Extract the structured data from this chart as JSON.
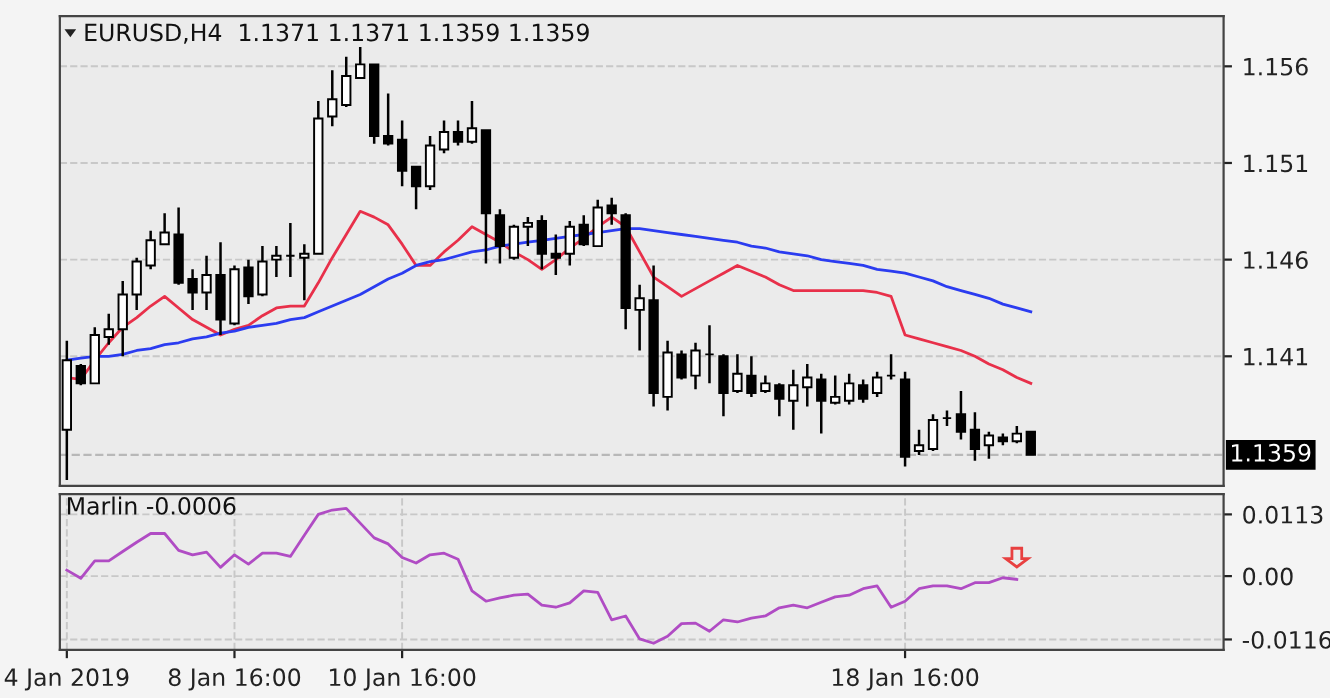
{
  "chart_data": [
    {
      "type": "candlestick",
      "title": "EURUSD,H4  1.1371 1.1371 1.1359 1.1359",
      "categories": [
        null,
        null,
        null,
        null,
        null,
        null,
        null,
        null,
        null,
        null,
        null,
        null,
        null,
        null,
        null,
        null,
        null,
        null,
        null,
        null,
        null,
        null,
        null,
        null,
        null,
        null,
        null,
        null,
        null,
        null,
        null,
        null,
        null,
        null,
        null,
        null,
        null,
        null,
        null,
        null,
        null,
        null,
        null,
        null,
        null,
        null,
        null,
        null,
        null,
        null,
        null,
        null,
        null,
        null,
        null,
        null,
        null,
        null,
        null,
        null,
        null,
        null,
        null,
        null,
        null,
        null,
        null,
        null,
        null,
        null
      ],
      "ohlc": [
        [
          1.1372,
          1.1418,
          1.1346,
          1.1408
        ],
        [
          1.1405,
          1.1406,
          1.1395,
          1.1396
        ],
        [
          1.1396,
          1.1425,
          1.1396,
          1.1421
        ],
        [
          1.142,
          1.1432,
          1.1416,
          1.1424
        ],
        [
          1.1424,
          1.1449,
          1.141,
          1.1442
        ],
        [
          1.1442,
          1.1461,
          1.1434,
          1.1459
        ],
        [
          1.1457,
          1.1475,
          1.1455,
          1.147
        ],
        [
          1.1468,
          1.1484,
          1.1468,
          1.1474
        ],
        [
          1.1473,
          1.1487,
          1.1447,
          1.1448
        ],
        [
          1.145,
          1.1455,
          1.1434,
          1.1443
        ],
        [
          1.1443,
          1.1462,
          1.1434,
          1.1452
        ],
        [
          1.1452,
          1.1469,
          1.1421,
          1.1429
        ],
        [
          1.1427,
          1.1457,
          1.1426,
          1.1455
        ],
        [
          1.1456,
          1.146,
          1.1437,
          1.1441
        ],
        [
          1.1442,
          1.1467,
          1.1441,
          1.1459
        ],
        [
          1.146,
          1.1467,
          1.1451,
          1.1462
        ],
        [
          1.1462,
          1.1479,
          1.1451,
          1.1462
        ],
        [
          1.1461,
          1.1468,
          1.1439,
          1.1463
        ],
        [
          1.1463,
          1.1542,
          1.1463,
          1.1533
        ],
        [
          1.1534,
          1.1558,
          1.1529,
          1.1543
        ],
        [
          1.154,
          1.1565,
          1.1539,
          1.1555
        ],
        [
          1.1554,
          1.157,
          1.1554,
          1.1561
        ],
        [
          1.1561,
          1.1561,
          1.152,
          1.1524
        ],
        [
          1.1524,
          1.1546,
          1.1519,
          1.152
        ],
        [
          1.1522,
          1.1532,
          1.1498,
          1.1506
        ],
        [
          1.1508,
          1.1508,
          1.1486,
          1.1498
        ],
        [
          1.1498,
          1.1524,
          1.1496,
          1.1519
        ],
        [
          1.1517,
          1.1532,
          1.1515,
          1.1526
        ],
        [
          1.1526,
          1.1532,
          1.1519,
          1.1521
        ],
        [
          1.1521,
          1.1542,
          1.152,
          1.1528
        ],
        [
          1.1527,
          1.1527,
          1.1458,
          1.1484
        ],
        [
          1.1483,
          1.1486,
          1.1458,
          1.1467
        ],
        [
          1.1461,
          1.1478,
          1.146,
          1.1477
        ],
        [
          1.1477,
          1.1482,
          1.1467,
          1.1479
        ],
        [
          1.148,
          1.1483,
          1.1455,
          1.1463
        ],
        [
          1.1463,
          1.1473,
          1.1452,
          1.1461
        ],
        [
          1.1463,
          1.148,
          1.1457,
          1.1477
        ],
        [
          1.1478,
          1.1483,
          1.1467,
          1.1468
        ],
        [
          1.1467,
          1.1491,
          1.1467,
          1.1487
        ],
        [
          1.1488,
          1.1492,
          1.1478,
          1.1484
        ],
        [
          1.1483,
          1.1484,
          1.1424,
          1.1435
        ],
        [
          1.1434,
          1.1447,
          1.1413,
          1.144
        ],
        [
          1.1439,
          1.1457,
          1.1384,
          1.1391
        ],
        [
          1.1389,
          1.1418,
          1.1382,
          1.1412
        ],
        [
          1.1411,
          1.1413,
          1.1398,
          1.1399
        ],
        [
          1.14,
          1.1417,
          1.1393,
          1.1413
        ],
        [
          1.1411,
          1.1426,
          1.1396,
          1.1411
        ],
        [
          1.141,
          1.1411,
          1.1379,
          1.1391
        ],
        [
          1.1392,
          1.1411,
          1.1391,
          1.1401
        ],
        [
          1.14,
          1.141,
          1.1389,
          1.1391
        ],
        [
          1.1392,
          1.14,
          1.1391,
          1.1396
        ],
        [
          1.1395,
          1.1396,
          1.1379,
          1.1388
        ],
        [
          1.1387,
          1.1403,
          1.1372,
          1.1395
        ],
        [
          1.1394,
          1.1406,
          1.1384,
          1.1399
        ],
        [
          1.1398,
          1.1401,
          1.137,
          1.1387
        ],
        [
          1.1386,
          1.14,
          1.1385,
          1.1389
        ],
        [
          1.1387,
          1.1401,
          1.1385,
          1.1396
        ],
        [
          1.1395,
          1.1398,
          1.1386,
          1.1388
        ],
        [
          1.1391,
          1.1402,
          1.1389,
          1.1399
        ],
        [
          1.14,
          1.1411,
          1.1398,
          1.14
        ],
        [
          1.1398,
          1.1402,
          1.1353,
          1.1358
        ],
        [
          1.1361,
          1.1372,
          1.1359,
          1.1364
        ],
        [
          1.1362,
          1.138,
          1.1361,
          1.1377
        ],
        [
          1.1378,
          1.1382,
          1.1374,
          1.1378
        ],
        [
          1.138,
          1.1392,
          1.1367,
          1.1371
        ],
        [
          1.1372,
          1.1381,
          1.1356,
          1.1362
        ],
        [
          1.1364,
          1.1371,
          1.1357,
          1.1369
        ],
        [
          1.1368,
          1.137,
          1.1364,
          1.1366
        ],
        [
          1.1366,
          1.1374,
          1.1365,
          1.137
        ],
        [
          1.1371,
          1.1371,
          1.1359,
          1.1359
        ]
      ],
      "series": [
        {
          "type": "line",
          "color": "#e8304a",
          "values": [
            1.1399,
            1.1398,
            1.1408,
            1.1417,
            1.1425,
            1.143,
            1.1436,
            1.1441,
            1.1435,
            1.1429,
            1.1425,
            1.1421,
            1.1424,
            1.1426,
            1.1431,
            1.1435,
            1.1436,
            1.1436,
            1.1448,
            1.1461,
            1.1473,
            1.1485,
            1.1482,
            1.1478,
            1.1468,
            1.1457,
            1.1457,
            1.1464,
            1.147,
            1.1477,
            1.1473,
            1.1469,
            1.1464,
            1.146,
            1.1455,
            1.146,
            1.1466,
            1.1471,
            1.1477,
            1.1482,
            1.1477,
            1.1464,
            1.1451,
            1.1446,
            1.1441,
            1.1445,
            1.1449,
            1.1453,
            1.1457,
            1.1454,
            1.1451,
            1.1447,
            1.1444,
            1.1444,
            1.1444,
            1.1444,
            1.1444,
            1.1444,
            1.1443,
            1.1441,
            1.1421,
            1.1419,
            1.1417,
            1.1415,
            1.1413,
            1.141,
            1.1406,
            1.1403,
            1.1399,
            1.1396
          ]
        },
        {
          "type": "line",
          "color": "#2b3cf0",
          "values": [
            1.1408,
            1.1409,
            1.141,
            1.141,
            1.1411,
            1.1413,
            1.1414,
            1.1416,
            1.1417,
            1.1419,
            1.142,
            1.1422,
            1.1423,
            1.1425,
            1.1426,
            1.1427,
            1.1429,
            1.143,
            1.1433,
            1.1436,
            1.1439,
            1.1442,
            1.1446,
            1.145,
            1.1453,
            1.1457,
            1.1459,
            1.146,
            1.1462,
            1.1464,
            1.1465,
            1.1467,
            1.1468,
            1.1469,
            1.147,
            1.1471,
            1.1472,
            1.1473,
            1.1474,
            1.1475,
            1.1476,
            1.1476,
            1.1475,
            1.1474,
            1.1473,
            1.1472,
            1.1471,
            1.147,
            1.1469,
            1.1467,
            1.1466,
            1.1464,
            1.1463,
            1.1462,
            1.146,
            1.1459,
            1.1458,
            1.1457,
            1.1455,
            1.1454,
            1.1453,
            1.1451,
            1.1449,
            1.1446,
            1.1444,
            1.1442,
            1.144,
            1.1437,
            1.1435,
            1.1433
          ]
        }
      ],
      "ylim": [
        1.1343,
        1.1586
      ],
      "yticks": [
        1.141,
        1.146,
        1.151,
        1.156
      ],
      "ref_lines": [
        {
          "axis": "y",
          "value": 1.1359,
          "label": "1.1359",
          "color": "#b8b8b8",
          "line_style": "dashed"
        }
      ],
      "grid": "y",
      "tick_labels": "y"
    },
    {
      "type": "line",
      "title": "Marlin -0.0006",
      "categories": [
        "4 Jan 2019",
        null,
        null,
        null,
        null,
        null,
        null,
        null,
        null,
        null,
        null,
        null,
        "8 Jan 16:00",
        null,
        null,
        null,
        null,
        null,
        null,
        null,
        null,
        null,
        null,
        null,
        "10 Jan 16:00",
        null,
        null,
        null,
        null,
        null,
        null,
        null,
        null,
        null,
        null,
        null,
        null,
        null,
        null,
        null,
        null,
        null,
        null,
        null,
        null,
        null,
        null,
        null,
        null,
        null,
        null,
        null,
        null,
        null,
        null,
        null,
        null,
        null,
        null,
        null,
        "18 Jan 16:00",
        null,
        null,
        null,
        null,
        null,
        null,
        null,
        null,
        null
      ],
      "series": [
        {
          "color": "#b04cc4",
          "values": [
            0.0011,
            -0.0004,
            0.0028,
            0.0028,
            0.0045,
            0.0062,
            0.0078,
            0.0078,
            0.0047,
            0.0039,
            0.0044,
            0.0016,
            0.0039,
            0.0022,
            0.0042,
            0.0042,
            0.0036,
            0.0075,
            0.0113,
            0.0121,
            0.0124,
            0.0097,
            0.007,
            0.0059,
            0.0034,
            0.0024,
            0.0039,
            0.0042,
            0.0031,
            -0.0027,
            -0.0046,
            -0.004,
            -0.0035,
            -0.0033,
            -0.0053,
            -0.0057,
            -0.0049,
            -0.0027,
            -0.003,
            -0.008,
            -0.0073,
            -0.0115,
            -0.0123,
            -0.011,
            -0.0087,
            -0.0086,
            -0.0101,
            -0.008,
            -0.0084,
            -0.0077,
            -0.0073,
            -0.0058,
            -0.0053,
            -0.0058,
            -0.0048,
            -0.0038,
            -0.0035,
            -0.0023,
            -0.0018,
            -0.0057,
            -0.0046,
            -0.0023,
            -0.0018,
            -0.0018,
            -0.0023,
            -0.0012,
            -0.0012,
            -0.0003,
            -0.0006,
            null
          ]
        }
      ],
      "ylim": [
        -0.0135,
        0.015
      ],
      "yticks": [
        0.0113,
        {
          "value": 0,
          "label": "0.00"
        },
        {
          "value": -0.0116,
          "label": "-0.0116"
        }
      ],
      "grid": true
    }
  ]
}
